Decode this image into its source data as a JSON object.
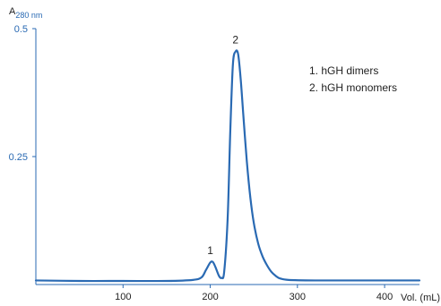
{
  "chart_data": {
    "type": "line",
    "title": "",
    "ylabel": "A",
    "ylabel_sub": "280 nm",
    "xlabel": "Vol. (mL)",
    "xlim": [
      0,
      440
    ],
    "ylim": [
      0,
      0.5
    ],
    "x_ticks": [
      100,
      200,
      300,
      400
    ],
    "y_ticks": [
      0.25,
      0.5
    ],
    "y_tick_labels": [
      "0.25",
      "0.5"
    ],
    "grid": false,
    "line_color": "#2a6ab3",
    "axis_color": "#2a6ab3",
    "series": [
      {
        "x": [
          0,
          50,
          100,
          150,
          180,
          190,
          195,
          200,
          203,
          206,
          210,
          213,
          216,
          220,
          223,
          226,
          229,
          232,
          235,
          238,
          242,
          246,
          250,
          255,
          260,
          265,
          270,
          275,
          280,
          290,
          320,
          360,
          400,
          440
        ],
        "y": [
          0.008,
          0.007,
          0.007,
          0.007,
          0.009,
          0.014,
          0.028,
          0.043,
          0.044,
          0.034,
          0.017,
          0.013,
          0.025,
          0.13,
          0.3,
          0.43,
          0.455,
          0.45,
          0.4,
          0.33,
          0.24,
          0.17,
          0.12,
          0.08,
          0.055,
          0.038,
          0.025,
          0.017,
          0.012,
          0.009,
          0.008,
          0.008,
          0.008,
          0.008
        ]
      }
    ],
    "annotations": [
      {
        "text": "1",
        "x": 200,
        "y": 0.044
      },
      {
        "text": "2",
        "x": 229,
        "y": 0.455
      }
    ],
    "legend": {
      "placement": "top-right",
      "entries": [
        "1.  hGH dimers",
        "2.  hGH monomers"
      ]
    }
  }
}
